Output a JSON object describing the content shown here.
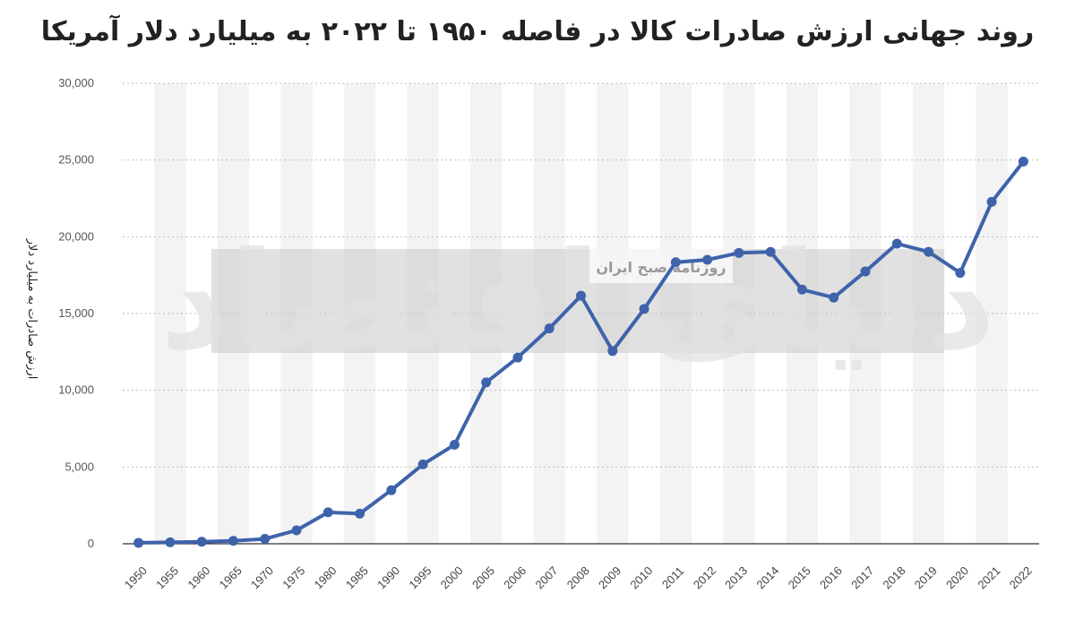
{
  "chart_data": {
    "type": "line",
    "title": "روند جهانی ارزش صادرات کالا در فاصله ۱۹۵۰ تا ۲۰۲۲ به میلیارد دلار آمریکا",
    "xlabel": "",
    "ylabel": "ارزش صادرات به میلیارد دلار",
    "ylim": [
      0,
      30000
    ],
    "yticks": [
      0,
      5000,
      10000,
      15000,
      20000,
      25000,
      30000
    ],
    "ytick_labels": [
      "0",
      "5,000",
      "10,000",
      "15,000",
      "20,000",
      "25,000",
      "30,000"
    ],
    "grid": "horizontal dotted",
    "alternating_column_bands": true,
    "x": [
      "1950",
      "1955",
      "1960",
      "1965",
      "1970",
      "1975",
      "1980",
      "1985",
      "1990",
      "1995",
      "2000",
      "2005",
      "2006",
      "2007",
      "2008",
      "2009",
      "2010",
      "2011",
      "2012",
      "2013",
      "2014",
      "2015",
      "2016",
      "2017",
      "2018",
      "2019",
      "2020",
      "2021",
      "2022"
    ],
    "series": [
      {
        "name": "",
        "color": "#3e63ab",
        "values": [
          62,
          95,
          130,
          190,
          318,
          877,
          2050,
          1960,
          3490,
          5170,
          6450,
          10510,
          12130,
          14030,
          16160,
          12560,
          15300,
          18340,
          18500,
          18950,
          19010,
          16560,
          16040,
          17740,
          19550,
          19020,
          17650,
          22280,
          24900
        ]
      }
    ]
  },
  "watermark": {
    "logo_text": "دنیای اقتصاد",
    "tagline": "روزنامه صبح ایران",
    "band_color": "#c9c9c9"
  }
}
